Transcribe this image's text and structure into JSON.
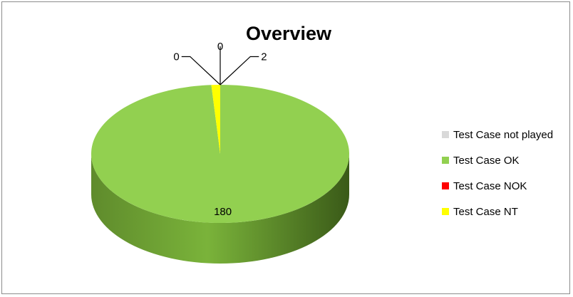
{
  "chart_data": {
    "type": "pie",
    "title": "Overview",
    "categories": [
      "Test Case not played",
      "Test Case OK",
      "Test Case NOK",
      "Test Case NT"
    ],
    "values": [
      0,
      180,
      0,
      2
    ],
    "colors": [
      "#d9d9d9",
      "#92d050",
      "#ff0000",
      "#ffff00"
    ],
    "data_labels": [
      "0",
      "180",
      "0",
      "2"
    ],
    "legend_position": "right",
    "style": "3d"
  }
}
